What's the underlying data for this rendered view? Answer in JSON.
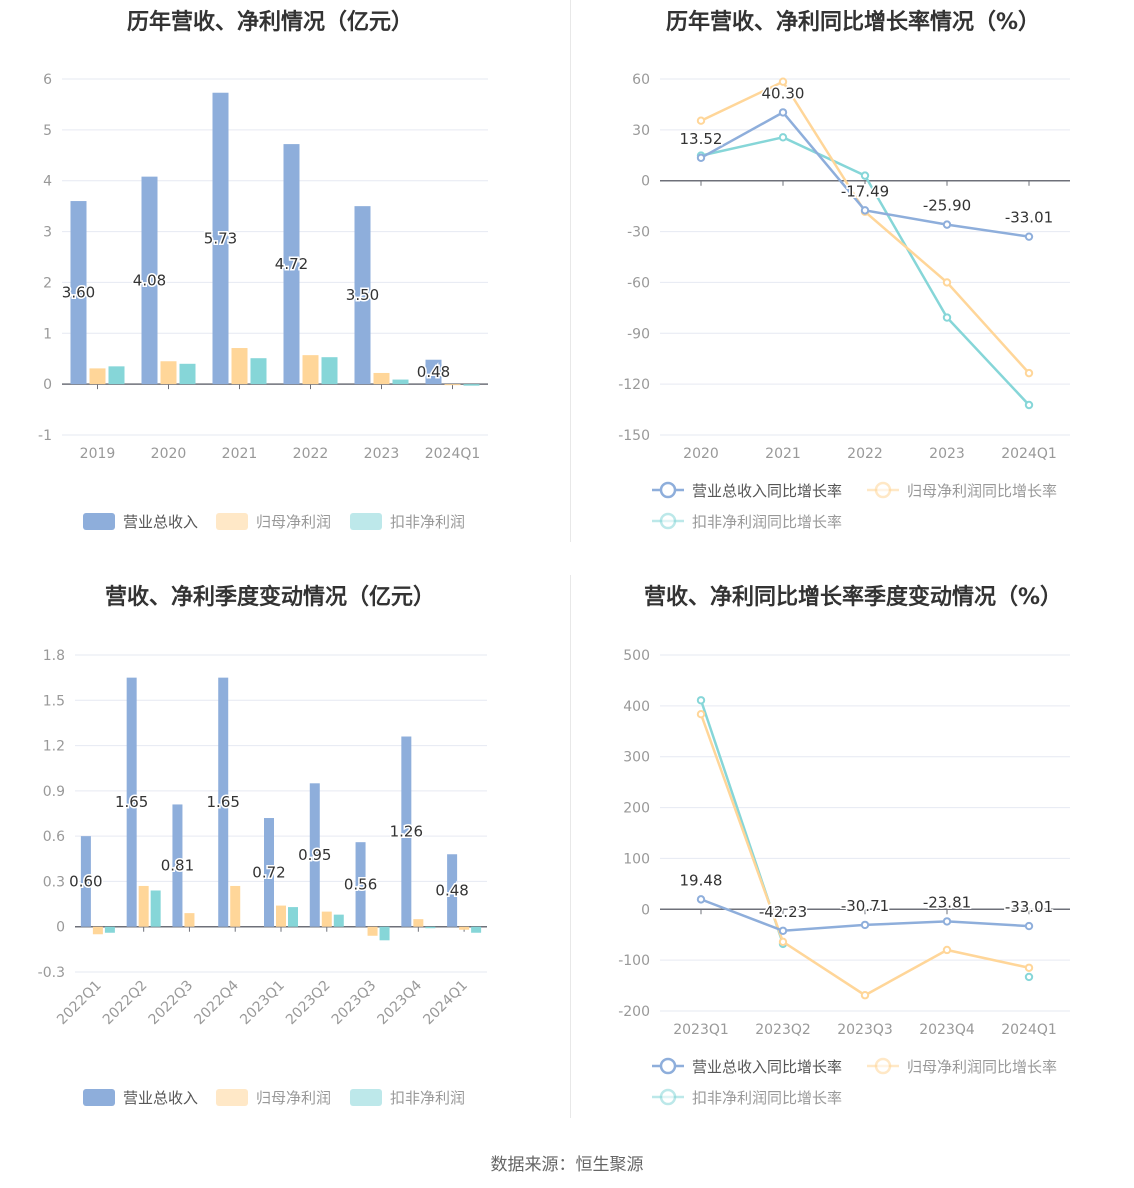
{
  "colors": {
    "revenue": "#8eaedb",
    "net_profit": "#ffd699",
    "deducted_profit": "#86d6d8",
    "grid": "#e6e9f2",
    "axis": "#6e7079",
    "tick_label": "#999999"
  },
  "footer": "数据来源：恒生聚源",
  "chart_data": [
    {
      "type": "bar",
      "title": "历年营收、净利情况（亿元）",
      "categories": [
        "2019",
        "2020",
        "2021",
        "2022",
        "2023",
        "2024Q1"
      ],
      "ylim": [
        -1,
        6
      ],
      "yticks": [
        "-1",
        "0",
        "1",
        "2",
        "3",
        "4",
        "5",
        "6"
      ],
      "grid": true,
      "legend_position": "bottom",
      "series": [
        {
          "name": "营业总收入",
          "values": [
            3.6,
            4.08,
            5.73,
            4.72,
            3.5,
            0.48
          ],
          "labels": [
            "3.60",
            "4.08",
            "5.73",
            "4.72",
            "3.50",
            "0.48"
          ]
        },
        {
          "name": "归母净利润",
          "values": [
            0.31,
            0.45,
            0.71,
            0.57,
            0.22,
            -0.01
          ]
        },
        {
          "name": "扣非净利润",
          "values": [
            0.35,
            0.4,
            0.51,
            0.53,
            0.09,
            -0.03
          ]
        }
      ]
    },
    {
      "type": "line",
      "title": "历年营收、净利同比增长率情况（%）",
      "categories": [
        "2020",
        "2021",
        "2022",
        "2023",
        "2024Q1"
      ],
      "ylim": [
        -150,
        60
      ],
      "yticks": [
        "-150",
        "-120",
        "-90",
        "-60",
        "-30",
        "0",
        "30",
        "60"
      ],
      "grid": true,
      "legend_position": "bottom",
      "series": [
        {
          "name": "营业总收入同比增长率",
          "values": [
            13.52,
            40.3,
            -17.49,
            -25.9,
            -33.01
          ],
          "labels": [
            "13.52",
            "40.30",
            "-17.49",
            "-25.90",
            "-33.01"
          ]
        },
        {
          "name": "归母净利润同比增长率",
          "values": [
            35.4,
            58.4,
            -18.3,
            -60.0,
            -113.5
          ]
        },
        {
          "name": "扣非净利润同比增长率",
          "values": [
            14.8,
            25.6,
            3.0,
            -80.7,
            -132.3
          ]
        }
      ]
    },
    {
      "type": "bar",
      "title": "营收、净利季度变动情况（亿元）",
      "categories": [
        "2022Q1",
        "2022Q2",
        "2022Q3",
        "2022Q4",
        "2023Q1",
        "2023Q2",
        "2023Q3",
        "2023Q4",
        "2024Q1"
      ],
      "ylim": [
        -0.3,
        1.8
      ],
      "yticks": [
        "-0.3",
        "0",
        "0.3",
        "0.6",
        "0.9",
        "1.2",
        "1.5",
        "1.8"
      ],
      "grid": true,
      "legend_position": "bottom",
      "series": [
        {
          "name": "营业总收入",
          "values": [
            0.6,
            1.65,
            0.81,
            1.65,
            0.72,
            0.95,
            0.56,
            1.26,
            0.48
          ],
          "labels": [
            "0.60",
            "1.65",
            "0.81",
            "1.65",
            "0.72",
            "0.95",
            "0.56",
            "1.26",
            "0.48"
          ]
        },
        {
          "name": "归母净利润",
          "values": [
            -0.05,
            0.27,
            0.09,
            0.27,
            0.14,
            0.1,
            -0.06,
            0.05,
            -0.02
          ]
        },
        {
          "name": "扣非净利润",
          "values": [
            -0.04,
            0.24,
            null,
            null,
            0.13,
            0.08,
            -0.09,
            -0.01,
            -0.04
          ]
        }
      ]
    },
    {
      "type": "line",
      "title": "营收、净利同比增长率季度变动情况（%）",
      "categories": [
        "2023Q1",
        "2023Q2",
        "2023Q3",
        "2023Q4",
        "2024Q1"
      ],
      "ylim": [
        -200,
        500
      ],
      "yticks": [
        "-200",
        "-100",
        "0",
        "100",
        "200",
        "300",
        "400",
        "500"
      ],
      "grid": true,
      "legend_position": "bottom",
      "series": [
        {
          "name": "营业总收入同比增长率",
          "values": [
            19.48,
            -42.23,
            -30.71,
            -23.81,
            -33.01
          ],
          "labels": [
            "19.48",
            "-42.23",
            "-30.71",
            "-23.81",
            "-33.01"
          ]
        },
        {
          "name": "归母净利润同比增长率",
          "values": [
            383.6,
            -64,
            -169,
            -80,
            -115
          ]
        },
        {
          "name": "扣非净利润同比增长率",
          "values": [
            411,
            -68,
            null,
            null,
            -133
          ]
        }
      ]
    }
  ]
}
